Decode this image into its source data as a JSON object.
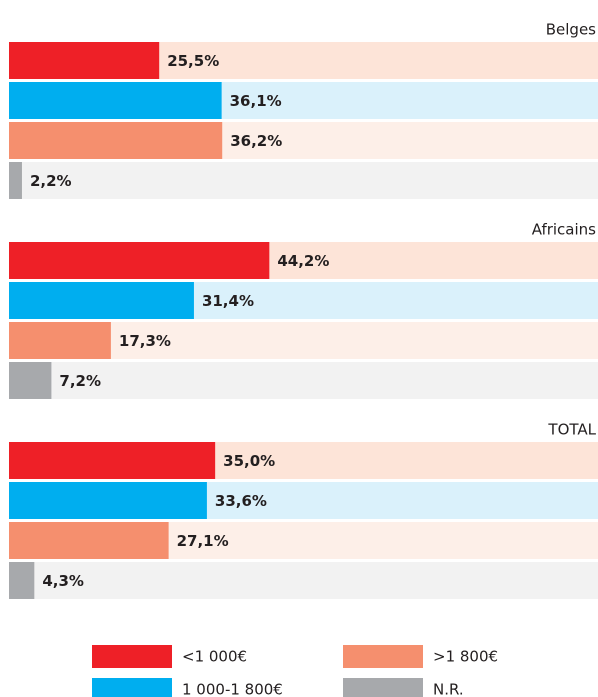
{
  "chart_data": {
    "type": "bar",
    "orientation": "horizontal",
    "categories": [
      "Belges",
      "Africains",
      "TOTAL"
    ],
    "xlim": [
      0,
      100
    ],
    "series": [
      {
        "name": "<1 000€",
        "color": "#ee2027",
        "background": "#fde4d8",
        "values": [
          25.5,
          44.2,
          35.0
        ],
        "value_labels": [
          "25,5%",
          "44,2%",
          "35,0%"
        ]
      },
      {
        "name": "1 000-1 800€",
        "color": "#00aeef",
        "background": "#daf1fb",
        "values": [
          36.1,
          31.4,
          33.6
        ],
        "value_labels": [
          "36,1%",
          "31,4%",
          "33,6%"
        ]
      },
      {
        "name": ">1 800€",
        "color": "#f58f6e",
        "background": "#fdefe8",
        "values": [
          36.2,
          17.3,
          27.1
        ],
        "value_labels": [
          "36,2%",
          "17,3%",
          "27,1%"
        ]
      },
      {
        "name": "N.R.",
        "color": "#a7a9ac",
        "background": "#f2f2f2",
        "values": [
          2.2,
          7.2,
          4.3
        ],
        "value_labels": [
          "2,2%",
          "7,2%",
          "4,3%"
        ]
      }
    ]
  }
}
